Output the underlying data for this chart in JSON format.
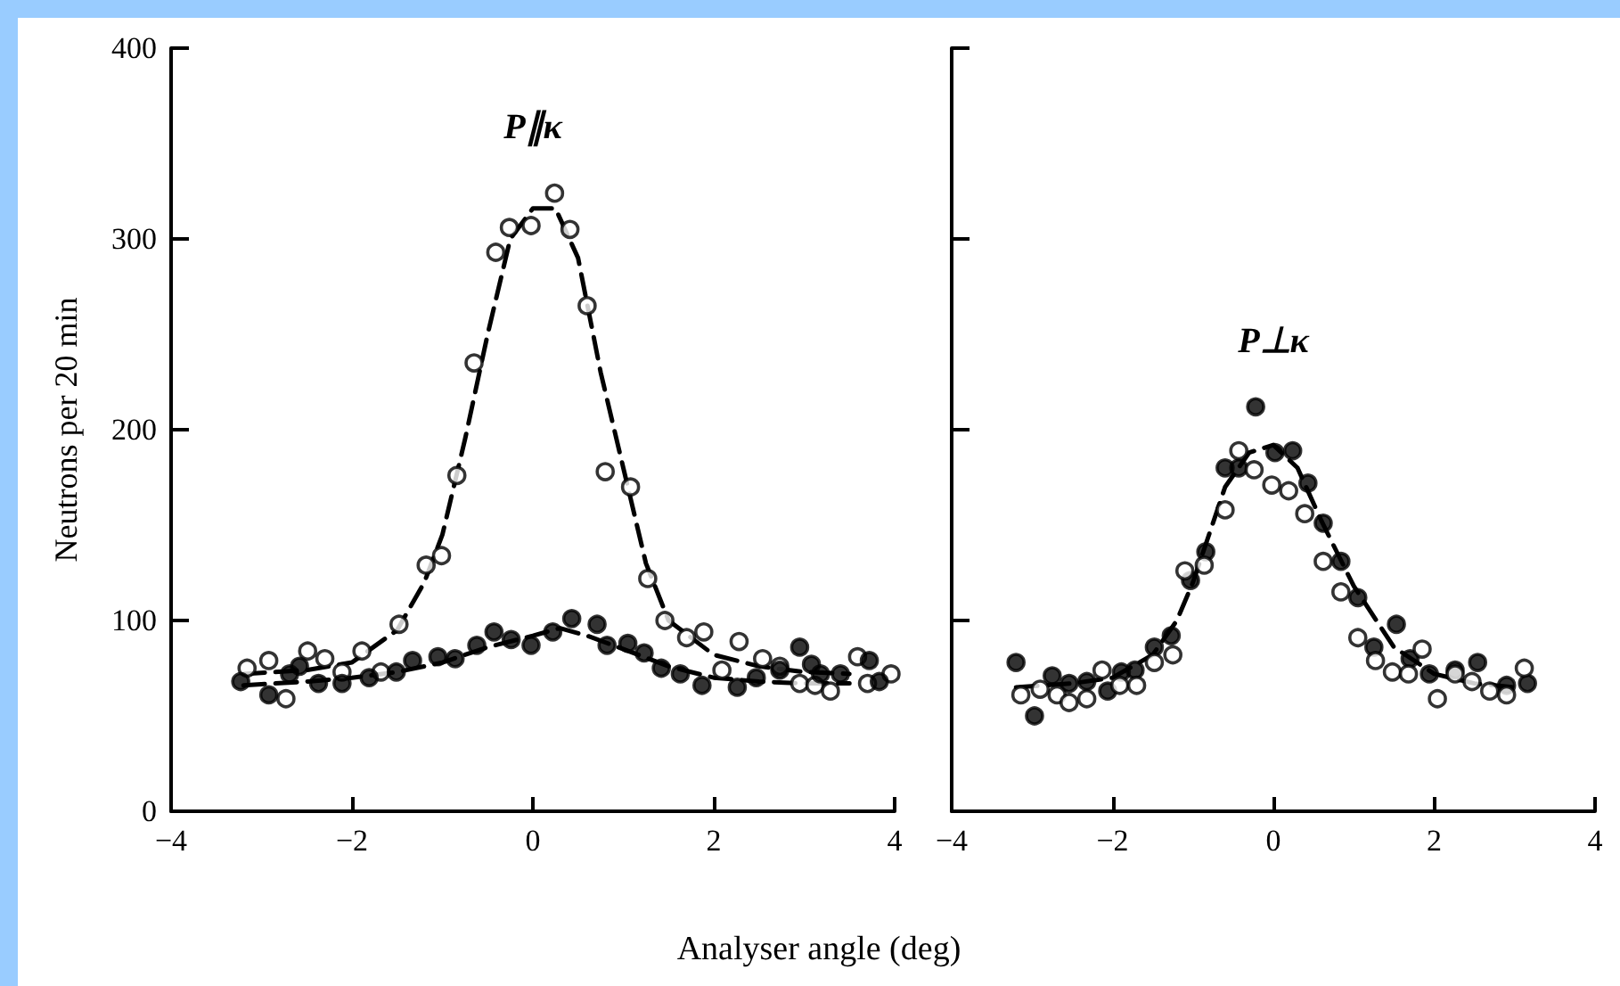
{
  "chart_data": [
    {
      "type": "scatter",
      "ylabel": "Neutrons per 20 min",
      "xlabel": "Analyser angle (deg)",
      "annotations": [
        "P∥κ"
      ],
      "xlim": [
        -4,
        4
      ],
      "xticks": [
        -4,
        -2,
        0,
        2,
        4
      ],
      "ylim": [
        0,
        400
      ],
      "yticks": [
        0,
        100,
        200,
        300,
        400
      ],
      "marker": "circle",
      "series": [
        {
          "color": "#ffffff",
          "x": [
            -3.16,
            -2.92,
            -2.73,
            -2.49,
            -2.3,
            -2.11,
            -1.89,
            -1.68,
            -1.48,
            -1.18,
            -1.01,
            -0.84,
            -0.65,
            -0.41,
            -0.26,
            -0.02,
            0.24,
            0.41,
            0.6,
            0.8,
            1.08,
            1.27,
            1.46,
            1.7,
            1.89,
            2.09,
            2.28,
            2.54,
            2.73,
            2.95,
            3.12,
            3.29,
            3.59,
            3.7,
            3.96
          ],
          "values": [
            75,
            79,
            59,
            84,
            80,
            73,
            84,
            73,
            98,
            129,
            134,
            176,
            235,
            293,
            306,
            307,
            324,
            305,
            265,
            178,
            170,
            122,
            100,
            91,
            94,
            74,
            89,
            80,
            76,
            67,
            66,
            63,
            81,
            67,
            72
          ]
        },
        {
          "color": "#000000",
          "x": [
            -3.23,
            -2.92,
            -2.69,
            -2.58,
            -2.37,
            -2.11,
            -1.81,
            -1.51,
            -1.33,
            -1.05,
            -0.86,
            -0.62,
            -0.43,
            -0.24,
            -0.02,
            0.22,
            0.43,
            0.71,
            0.82,
            1.05,
            1.23,
            1.42,
            1.63,
            1.87,
            2.26,
            2.47,
            2.73,
            2.95,
            3.08,
            3.18,
            3.4,
            3.72,
            3.83
          ],
          "values": [
            68,
            61,
            72,
            76,
            67,
            67,
            70,
            73,
            79,
            81,
            80,
            87,
            94,
            90,
            87,
            94,
            101,
            98,
            87,
            88,
            83,
            75,
            72,
            66,
            65,
            70,
            74,
            86,
            77,
            72,
            72,
            79,
            68
          ]
        },
        {
          "type": "line",
          "color": "#000000",
          "marker": "none",
          "line_style": "dashed",
          "x": [
            -3.2,
            -2.5,
            -2,
            -1.5,
            -1.2,
            -1,
            -0.75,
            -0.5,
            -0.25,
            0,
            0.25,
            0.5,
            0.75,
            1,
            1.25,
            1.5,
            2,
            2.5,
            3,
            3.5
          ],
          "values": [
            72,
            74,
            78,
            95,
            120,
            145,
            195,
            250,
            300,
            316,
            316,
            290,
            230,
            180,
            130,
            100,
            82,
            76,
            73,
            72
          ]
        },
        {
          "type": "line",
          "color": "#000000",
          "marker": "none",
          "line_style": "dashed",
          "x": [
            -3.2,
            -2.5,
            -2,
            -1.5,
            -1,
            -0.5,
            0,
            0.3,
            0.6,
            1,
            1.5,
            2,
            2.5,
            3,
            3.5
          ],
          "values": [
            66,
            68,
            70,
            73,
            78,
            86,
            92,
            96,
            92,
            85,
            76,
            70,
            68,
            67,
            67
          ]
        }
      ]
    },
    {
      "type": "scatter",
      "annotations": [
        "P⊥κ"
      ],
      "tick_labels": "x",
      "xlim": [
        -4,
        4
      ],
      "xticks": [
        -4,
        -2,
        0,
        2,
        4
      ],
      "ylim": [
        0,
        400
      ],
      "yticks": [
        0,
        100,
        200,
        300,
        400
      ],
      "marker": "circle",
      "series": [
        {
          "color": "#000000",
          "x": [
            -3.2,
            -2.97,
            -2.75,
            -2.54,
            -2.32,
            -2.06,
            -1.89,
            -1.72,
            -1.48,
            -1.27,
            -1.03,
            -0.84,
            -0.6,
            -0.43,
            -0.22,
            0.02,
            0.24,
            0.43,
            0.62,
            0.84,
            1.05,
            1.25,
            1.53,
            1.7,
            1.94,
            2.26,
            2.54,
            2.9,
            3.16
          ],
          "values": [
            78,
            50,
            71,
            67,
            68,
            63,
            73,
            74,
            86,
            92,
            121,
            136,
            180,
            180,
            212,
            188,
            189,
            172,
            151,
            131,
            112,
            86,
            98,
            80,
            72,
            74,
            78,
            66,
            67
          ]
        },
        {
          "color": "#ffffff",
          "x": [
            -3.14,
            -2.9,
            -2.69,
            -2.54,
            -2.32,
            -2.13,
            -1.91,
            -1.7,
            -1.48,
            -1.25,
            -1.1,
            -0.86,
            -0.6,
            -0.43,
            -0.24,
            -0.02,
            0.19,
            0.39,
            0.62,
            0.84,
            1.05,
            1.27,
            1.48,
            1.68,
            1.85,
            2.04,
            2.26,
            2.47,
            2.69,
            2.9,
            3.12
          ],
          "values": [
            61,
            64,
            61,
            57,
            59,
            74,
            66,
            66,
            78,
            82,
            126,
            129,
            158,
            189,
            179,
            171,
            168,
            156,
            131,
            115,
            91,
            79,
            73,
            72,
            85,
            59,
            72,
            68,
            63,
            61,
            75
          ]
        },
        {
          "type": "line",
          "color": "#000000",
          "marker": "none",
          "line_style": "dashed",
          "x": [
            -3.2,
            -2.5,
            -2,
            -1.5,
            -1.2,
            -1,
            -0.8,
            -0.6,
            -0.3,
            0,
            0.3,
            0.6,
            1,
            1.5,
            2,
            2.5,
            3
          ],
          "values": [
            65,
            67,
            70,
            82,
            100,
            120,
            145,
            170,
            188,
            192,
            180,
            152,
            118,
            86,
            72,
            67,
            65
          ]
        }
      ]
    }
  ]
}
